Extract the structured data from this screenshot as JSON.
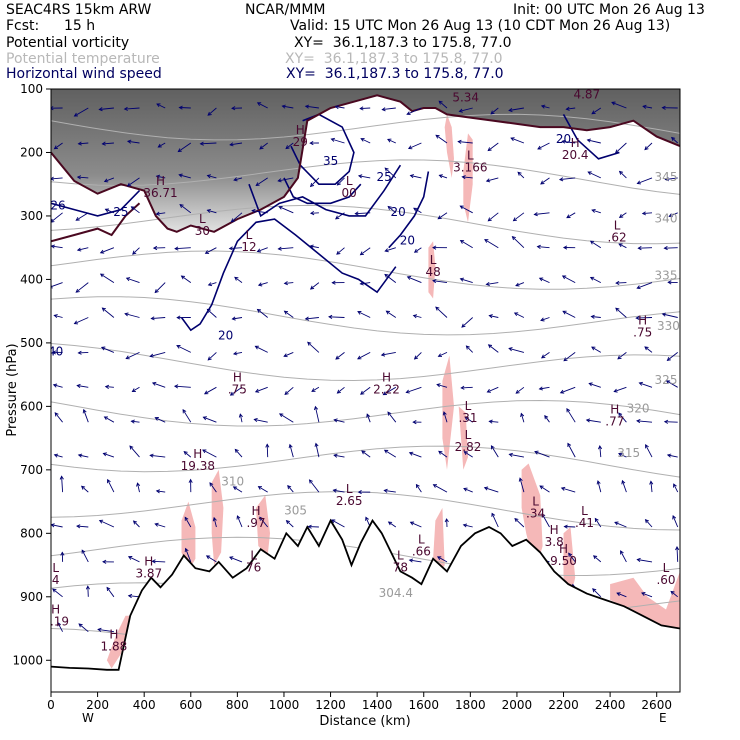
{
  "header": {
    "model": "SEAC4RS 15km ARW",
    "center": "NCAR/MMM",
    "init": "Init: 00 UTC Mon 26 Aug 13",
    "fcst_label": "Fcst:",
    "fcst_value": "15 h",
    "valid": "Valid: 15 UTC Mon 26 Aug 13 (10 CDT Mon 26 Aug 13)"
  },
  "fields": [
    {
      "name": "Potential vorticity",
      "xy": "XY=  36.1,187.3 to 175.8, 77.0",
      "color": "#000000"
    },
    {
      "name": "Potential temperature",
      "xy": "XY=  36.1,187.3 to 175.8, 77.0",
      "color": "#b8b8b8"
    },
    {
      "name": "Horizontal wind speed",
      "xy": "XY=  36.1,187.3 to 175.8, 77.0",
      "color": "#000060"
    }
  ],
  "colors": {
    "pv_shade_light": "#f5b8b8",
    "pv_contour": "#4a0820",
    "wind_contour": "#00006e",
    "theta_contour": "#b0b0b0",
    "terrain": "#000000",
    "vectors": "#000070"
  },
  "chart_data": {
    "type": "cross-section",
    "xlabel": "Distance (km)",
    "ylabel": "Pressure (hPa)",
    "xlim": [
      0,
      2700
    ],
    "ylim": [
      1050,
      100
    ],
    "x_ticks": [
      0,
      200,
      400,
      600,
      800,
      1000,
      1200,
      1400,
      1600,
      1800,
      2000,
      2200,
      2400,
      2600
    ],
    "y_ticks": [
      100,
      200,
      300,
      400,
      500,
      600,
      700,
      800,
      900,
      1000
    ],
    "end_labels": {
      "left": "W",
      "right": "E"
    },
    "terrain_surface": {
      "distance_km": [
        0,
        80,
        160,
        240,
        290,
        340,
        390,
        430,
        470,
        520,
        570,
        620,
        680,
        720,
        780,
        840,
        900,
        960,
        1010,
        1060,
        1100,
        1150,
        1200,
        1250,
        1290,
        1330,
        1380,
        1420,
        1460,
        1500,
        1550,
        1590,
        1640,
        1700,
        1760,
        1820,
        1880,
        1930,
        1980,
        2040,
        2100,
        2160,
        2220,
        2300,
        2380,
        2460,
        2540,
        2620,
        2700
      ],
      "pressure_hpa": [
        1010,
        1012,
        1013,
        1015,
        1015,
        930,
        890,
        870,
        885,
        865,
        835,
        855,
        860,
        845,
        870,
        855,
        825,
        840,
        800,
        820,
        790,
        820,
        780,
        810,
        850,
        815,
        780,
        800,
        830,
        860,
        870,
        880,
        840,
        860,
        820,
        800,
        790,
        800,
        820,
        810,
        830,
        860,
        880,
        895,
        905,
        915,
        930,
        945,
        950
      ]
    },
    "wind_speed_contours": [
      {
        "value": 20,
        "label": "20",
        "distance_km": [
          560,
          600,
          640,
          690,
          740,
          800,
          880,
          960,
          1050,
          1150,
          1250,
          1320,
          1400,
          1480
        ],
        "pressure_hpa": [
          460,
          480,
          470,
          440,
          390,
          340,
          310,
          305,
          330,
          360,
          390,
          400,
          420,
          380
        ]
      },
      {
        "value": 20,
        "label": "20",
        "distance_km": [
          1450,
          1500,
          1560,
          1600,
          1620
        ],
        "pressure_hpa": [
          350,
          330,
          300,
          270,
          230
        ]
      },
      {
        "value": 25,
        "label": "25",
        "distance_km": [
          850,
          900,
          980,
          1080,
          1180,
          1280,
          1350,
          1430,
          1500
        ],
        "pressure_hpa": [
          250,
          300,
          280,
          270,
          290,
          300,
          300,
          260,
          220
        ]
      },
      {
        "value": 25,
        "label": "25",
        "distance_km": [
          0,
          100,
          200,
          300,
          380
        ],
        "pressure_hpa": [
          280,
          290,
          300,
          290,
          260
        ]
      },
      {
        "value": 30,
        "label": "30",
        "distance_km": [
          1000,
          1040,
          1100,
          1200,
          1280,
          1330
        ],
        "pressure_hpa": [
          240,
          270,
          280,
          280,
          270,
          250
        ]
      },
      {
        "value": 35,
        "label": "35",
        "distance_km": [
          1030,
          1070,
          1150,
          1220,
          1280,
          1300,
          1250,
          1150,
          1080
        ],
        "pressure_hpa": [
          190,
          220,
          250,
          250,
          230,
          200,
          160,
          140,
          150
        ]
      },
      {
        "value": 20,
        "label": "20",
        "distance_km": [
          2200,
          2260,
          2350,
          2440
        ],
        "pressure_hpa": [
          140,
          180,
          210,
          200
        ]
      }
    ],
    "pv_contours": [
      {
        "label": "2 PVU",
        "distance_km": [
          0,
          100,
          200,
          300,
          400,
          450,
          500,
          540,
          600,
          700,
          800,
          900,
          1000,
          1060,
          1100,
          1200,
          1300,
          1400,
          1500,
          1550,
          1600,
          1650,
          1700,
          1800,
          1900,
          2000,
          2100,
          2200,
          2300,
          2400,
          2500,
          2600,
          2700
        ],
        "pressure_hpa": [
          200,
          245,
          265,
          250,
          260,
          300,
          320,
          325,
          315,
          325,
          305,
          290,
          270,
          240,
          150,
          130,
          120,
          110,
          120,
          135,
          130,
          130,
          140,
          145,
          150,
          155,
          160,
          160,
          165,
          160,
          150,
          175,
          190
        ]
      },
      {
        "label": "",
        "distance_km": [
          0,
          100,
          200,
          260,
          320,
          380
        ],
        "pressure_hpa": [
          340,
          330,
          320,
          330,
          300,
          280
        ]
      }
    ],
    "pv_shaded_regions": [
      {
        "distance_km": [
          1690,
          1700,
          1720,
          1730,
          1720,
          1700
        ],
        "pressure_hpa": [
          160,
          140,
          160,
          210,
          240,
          200
        ]
      },
      {
        "distance_km": [
          1770,
          1790,
          1810,
          1810,
          1790,
          1770
        ],
        "pressure_hpa": [
          230,
          170,
          180,
          250,
          310,
          280
        ]
      },
      {
        "distance_km": [
          1620,
          1640,
          1650,
          1640,
          1620
        ],
        "pressure_hpa": [
          350,
          340,
          380,
          430,
          420
        ]
      },
      {
        "distance_km": [
          1680,
          1710,
          1730,
          1700,
          1680
        ],
        "pressure_hpa": [
          560,
          520,
          600,
          700,
          650
        ]
      },
      {
        "distance_km": [
          1750,
          1780,
          1790,
          1770
        ],
        "pressure_hpa": [
          600,
          610,
          680,
          700
        ]
      },
      {
        "distance_km": [
          2020,
          2050,
          2100,
          2110,
          2080,
          2040,
          2020
        ],
        "pressure_hpa": [
          700,
          690,
          740,
          820,
          860,
          800,
          760
        ]
      },
      {
        "distance_km": [
          2200,
          2230,
          2250,
          2230,
          2200
        ],
        "pressure_hpa": [
          800,
          790,
          870,
          900,
          870
        ]
      },
      {
        "distance_km": [
          1650,
          1680,
          1690,
          1660,
          1640
        ],
        "pressure_hpa": [
          780,
          760,
          850,
          870,
          840
        ]
      },
      {
        "distance_km": [
          2400,
          2500,
          2560,
          2640,
          2700,
          2700,
          2620,
          2540,
          2460,
          2400
        ],
        "pressure_hpa": [
          880,
          870,
          900,
          920,
          860,
          950,
          945,
          930,
          915,
          905
        ]
      },
      {
        "distance_km": [
          560,
          590,
          620,
          620,
          590,
          560
        ],
        "pressure_hpa": [
          780,
          750,
          790,
          840,
          860,
          830
        ]
      },
      {
        "distance_km": [
          690,
          720,
          740,
          730,
          700,
          690
        ],
        "pressure_hpa": [
          720,
          700,
          760,
          830,
          850,
          800
        ]
      },
      {
        "distance_km": [
          880,
          920,
          940,
          930,
          890
        ],
        "pressure_hpa": [
          760,
          740,
          800,
          835,
          820
        ]
      },
      {
        "distance_km": [
          240,
          280,
          320,
          340,
          300,
          260
        ],
        "pressure_hpa": [
          1000,
          960,
          930,
          930,
          990,
          1013
        ]
      }
    ],
    "theta_contour_labels": [
      {
        "text": "345",
        "distance_km": 2640,
        "pressure_hpa": 245
      },
      {
        "text": "340",
        "distance_km": 2640,
        "pressure_hpa": 310
      },
      {
        "text": "335",
        "distance_km": 2640,
        "pressure_hpa": 400
      },
      {
        "text": "330",
        "distance_km": 2650,
        "pressure_hpa": 480
      },
      {
        "text": "325",
        "distance_km": 2640,
        "pressure_hpa": 565
      },
      {
        "text": "320",
        "distance_km": 2520,
        "pressure_hpa": 610
      },
      {
        "text": "315",
        "distance_km": 2480,
        "pressure_hpa": 680
      },
      {
        "text": "310",
        "distance_km": 780,
        "pressure_hpa": 725
      },
      {
        "text": "305",
        "distance_km": 1050,
        "pressure_hpa": 770
      },
      {
        "text": "304.4",
        "distance_km": 1480,
        "pressure_hpa": 900
      }
    ],
    "extrema_labels": [
      {
        "letter": "H",
        "value": "7.19",
        "distance_km": 20,
        "pressure_hpa": 945
      },
      {
        "letter": "H",
        "value": "1.88",
        "distance_km": 270,
        "pressure_hpa": 985
      },
      {
        "letter": "H",
        "value": "3.87",
        "distance_km": 420,
        "pressure_hpa": 870
      },
      {
        "letter": "H",
        "value": "36.71",
        "distance_km": 470,
        "pressure_hpa": 270
      },
      {
        "letter": "L",
        "value": "30",
        "distance_km": 650,
        "pressure_hpa": 330
      },
      {
        "letter": "L",
        "value": "12",
        "distance_km": 850,
        "pressure_hpa": 355
      },
      {
        "letter": "H",
        "value": ".75",
        "distance_km": 800,
        "pressure_hpa": 580
      },
      {
        "letter": "H",
        "value": "19.38",
        "distance_km": 630,
        "pressure_hpa": 700
      },
      {
        "letter": "H",
        "value": ".97",
        "distance_km": 880,
        "pressure_hpa": 790
      },
      {
        "letter": "L",
        "value": "76",
        "distance_km": 870,
        "pressure_hpa": 860
      },
      {
        "letter": "H",
        "value": "29",
        "distance_km": 1070,
        "pressure_hpa": 190
      },
      {
        "letter": "L",
        "value": "00",
        "distance_km": 1280,
        "pressure_hpa": 270
      },
      {
        "letter": "L",
        "value": "2.65",
        "distance_km": 1280,
        "pressure_hpa": 755
      },
      {
        "letter": "H",
        "value": "2.22",
        "distance_km": 1440,
        "pressure_hpa": 580
      },
      {
        "letter": "L",
        "value": "78",
        "distance_km": 1500,
        "pressure_hpa": 860
      },
      {
        "letter": "L",
        "value": ".66",
        "distance_km": 1590,
        "pressure_hpa": 835
      },
      {
        "letter": "L",
        "value": "48",
        "distance_km": 1640,
        "pressure_hpa": 395
      },
      {
        "letter": "L",
        "value": "3.166",
        "distance_km": 1800,
        "pressure_hpa": 230
      },
      {
        "letter": "L",
        "value": ".31",
        "distance_km": 1790,
        "pressure_hpa": 625
      },
      {
        "letter": "L",
        "value": "2.82",
        "distance_km": 1790,
        "pressure_hpa": 670
      },
      {
        "letter": "L",
        "value": ".34",
        "distance_km": 2080,
        "pressure_hpa": 775
      },
      {
        "letter": "H",
        "value": "3.8",
        "distance_km": 2160,
        "pressure_hpa": 820
      },
      {
        "letter": "H",
        "value": "9.50",
        "distance_km": 2200,
        "pressure_hpa": 850
      },
      {
        "letter": "L",
        "value": ".41",
        "distance_km": 2290,
        "pressure_hpa": 790
      },
      {
        "letter": "H",
        "value": ".77",
        "distance_km": 2420,
        "pressure_hpa": 630
      },
      {
        "letter": "L",
        "value": ".62",
        "distance_km": 2430,
        "pressure_hpa": 340
      },
      {
        "letter": "H",
        "value": ".75",
        "distance_km": 2540,
        "pressure_hpa": 490
      },
      {
        "letter": "H",
        "value": "20.4",
        "distance_km": 2250,
        "pressure_hpa": 210
      },
      {
        "letter": "L",
        "value": ".60",
        "distance_km": 2640,
        "pressure_hpa": 880
      },
      {
        "letter": "L",
        "value": "4",
        "distance_km": 20,
        "pressure_hpa": 880
      },
      {
        "letter": "H",
        "value": "4.87",
        "distance_km": 2300,
        "pressure_hpa": 115
      },
      {
        "letter": "H",
        "value": "5.34",
        "distance_km": 1780,
        "pressure_hpa": 120
      },
      {
        "letter": "",
        "value": "40",
        "distance_km": 20,
        "pressure_hpa": 520
      },
      {
        "letter": "",
        "value": "26",
        "distance_km": 30,
        "pressure_hpa": 290
      },
      {
        "letter": "",
        "value": "25",
        "distance_km": 300,
        "pressure_hpa": 300
      },
      {
        "letter": "",
        "value": "35",
        "distance_km": 1200,
        "pressure_hpa": 220
      },
      {
        "letter": "",
        "value": "25",
        "distance_km": 1430,
        "pressure_hpa": 245
      },
      {
        "letter": "",
        "value": "20",
        "distance_km": 1490,
        "pressure_hpa": 300
      },
      {
        "letter": "",
        "value": "20",
        "distance_km": 1530,
        "pressure_hpa": 345
      },
      {
        "letter": "",
        "value": "20",
        "distance_km": 750,
        "pressure_hpa": 495
      },
      {
        "letter": "",
        "value": "20",
        "distance_km": 2200,
        "pressure_hpa": 185
      }
    ]
  }
}
